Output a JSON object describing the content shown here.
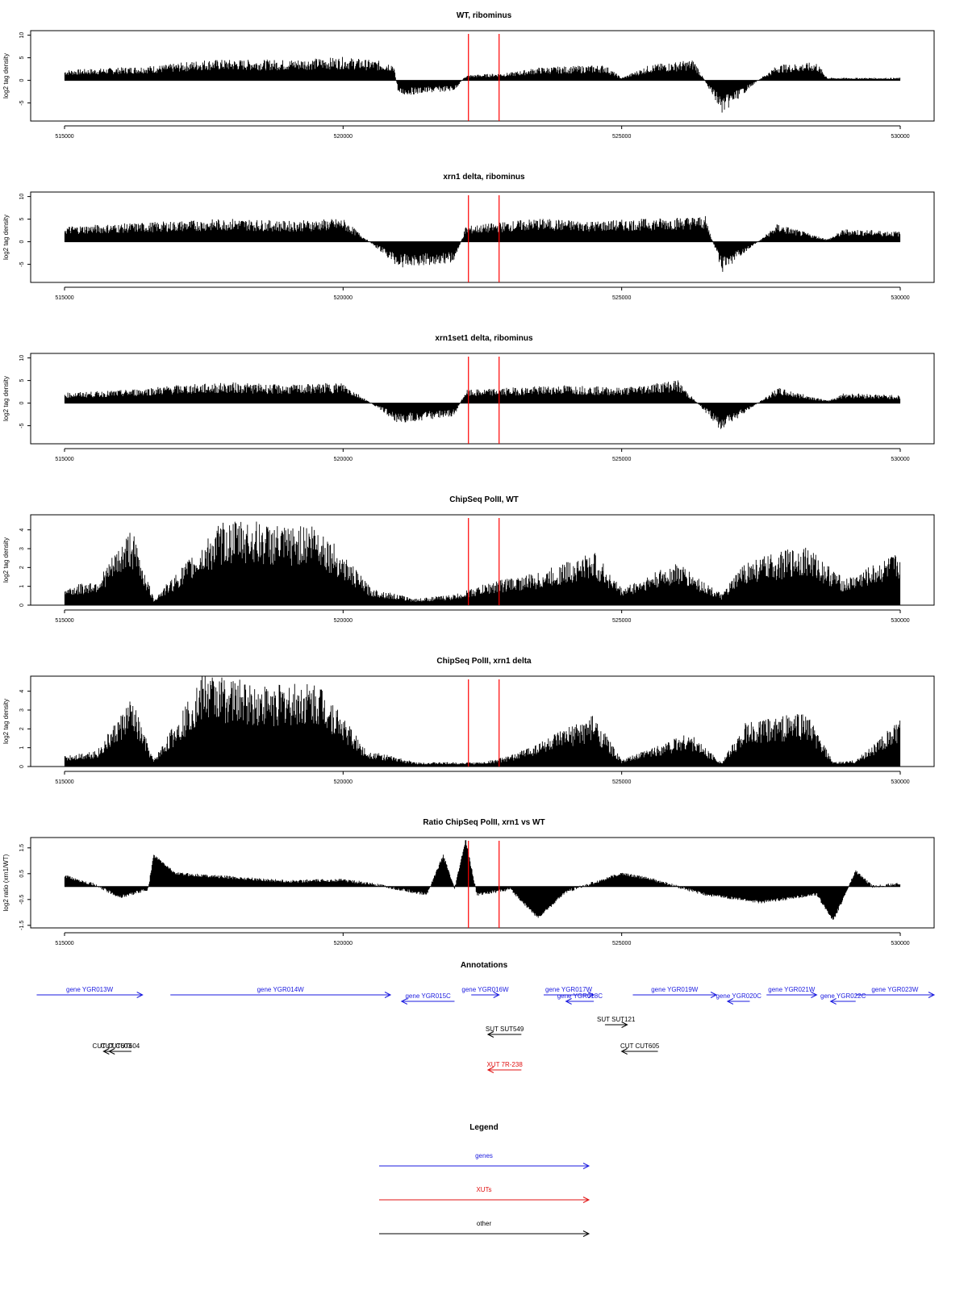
{
  "colors": {
    "gene": "#1a1adf",
    "xut": "#e01010",
    "other": "#000000",
    "marker": "#ff0000",
    "bars": "#000000"
  },
  "chart_data": [
    {
      "type": "bar",
      "title": "WT, ribominus",
      "ylabel": "log2 tag density",
      "xlim": [
        515000,
        530000
      ],
      "ylim": [
        -9,
        11
      ],
      "x_ticks": [
        515000,
        520000,
        525000,
        530000
      ],
      "y_ticks": [
        -5,
        0,
        5,
        10
      ],
      "red_markers": [
        522250,
        522800
      ],
      "signal_profile": [
        [
          515000,
          2
        ],
        [
          516000,
          2.5
        ],
        [
          516800,
          3
        ],
        [
          517500,
          4
        ],
        [
          519000,
          4
        ],
        [
          520000,
          4.5
        ],
        [
          520900,
          3.5
        ],
        [
          521000,
          -3
        ],
        [
          522000,
          -2
        ],
        [
          522200,
          1
        ],
        [
          523000,
          1.5
        ],
        [
          523500,
          2.5
        ],
        [
          524700,
          3
        ],
        [
          525000,
          0.5
        ],
        [
          525500,
          3
        ],
        [
          526300,
          4
        ],
        [
          526800,
          -6.5
        ],
        [
          527500,
          0.5
        ],
        [
          527800,
          3
        ],
        [
          528500,
          3.5
        ],
        [
          528700,
          0.5
        ],
        [
          530000,
          0.5
        ]
      ]
    },
    {
      "type": "bar",
      "title": "xrn1 delta, ribominus",
      "ylabel": "log2 tag density",
      "xlim": [
        515000,
        530000
      ],
      "ylim": [
        -9,
        11
      ],
      "x_ticks": [
        515000,
        520000,
        525000,
        530000
      ],
      "y_ticks": [
        -5,
        0,
        5,
        10
      ],
      "red_markers": [
        522250,
        522800
      ],
      "signal_profile": [
        [
          515000,
          3
        ],
        [
          516000,
          3.5
        ],
        [
          517000,
          4
        ],
        [
          518000,
          4.5
        ],
        [
          519000,
          4
        ],
        [
          520000,
          4.5
        ],
        [
          521000,
          -5
        ],
        [
          522000,
          -4
        ],
        [
          522200,
          3
        ],
        [
          523000,
          4
        ],
        [
          523500,
          4.5
        ],
        [
          524500,
          4
        ],
        [
          525500,
          4.5
        ],
        [
          526500,
          5
        ],
        [
          526800,
          -6
        ],
        [
          527500,
          0.5
        ],
        [
          527800,
          3.5
        ],
        [
          528700,
          0.5
        ],
        [
          529000,
          2.5
        ],
        [
          530000,
          2
        ]
      ]
    },
    {
      "type": "bar",
      "title": "xrn1set1 delta, ribominus",
      "ylabel": "log2 tag density",
      "xlim": [
        515000,
        530000
      ],
      "ylim": [
        -9,
        11
      ],
      "x_ticks": [
        515000,
        520000,
        525000,
        530000
      ],
      "y_ticks": [
        -5,
        0,
        5,
        10
      ],
      "red_markers": [
        522250,
        522800
      ],
      "signal_profile": [
        [
          515000,
          2
        ],
        [
          516000,
          2.5
        ],
        [
          517000,
          3.5
        ],
        [
          518000,
          4
        ],
        [
          519000,
          3.5
        ],
        [
          520000,
          4
        ],
        [
          521000,
          -4
        ],
        [
          522000,
          -2.5
        ],
        [
          522200,
          2.5
        ],
        [
          523000,
          3
        ],
        [
          524000,
          3.5
        ],
        [
          525000,
          3
        ],
        [
          526000,
          4.5
        ],
        [
          526800,
          -5.5
        ],
        [
          527500,
          0.5
        ],
        [
          527800,
          3
        ],
        [
          528700,
          0.5
        ],
        [
          529000,
          2
        ],
        [
          530000,
          1.5
        ]
      ]
    },
    {
      "type": "bar",
      "title": "ChipSeq PolII, WT",
      "ylabel": "log2 tag density",
      "xlim": [
        515000,
        530000
      ],
      "ylim": [
        0,
        4.8
      ],
      "x_ticks": [
        515000,
        520000,
        525000,
        530000
      ],
      "y_ticks": [
        0,
        1,
        2,
        3,
        4
      ],
      "red_markers": [
        522250,
        522800
      ],
      "signal_profile": [
        [
          515000,
          0.8
        ],
        [
          515600,
          1.2
        ],
        [
          516200,
          3.6
        ],
        [
          516600,
          0.3
        ],
        [
          517800,
          3.8
        ],
        [
          518200,
          4
        ],
        [
          519000,
          3.6
        ],
        [
          519500,
          3.9
        ],
        [
          520500,
          0.8
        ],
        [
          521300,
          0.3
        ],
        [
          522000,
          0.5
        ],
        [
          522800,
          1.2
        ],
        [
          523500,
          1.5
        ],
        [
          524500,
          2.5
        ],
        [
          525000,
          0.8
        ],
        [
          526000,
          2
        ],
        [
          526800,
          0.5
        ],
        [
          527200,
          2
        ],
        [
          528300,
          2.8
        ],
        [
          529000,
          1.2
        ],
        [
          530000,
          2.5
        ]
      ]
    },
    {
      "type": "bar",
      "title": "ChipSeq PolII, xrn1 delta",
      "ylabel": "log2 tag density",
      "xlim": [
        515000,
        530000
      ],
      "ylim": [
        0,
        4.8
      ],
      "x_ticks": [
        515000,
        520000,
        525000,
        530000
      ],
      "y_ticks": [
        0,
        1,
        2,
        3,
        4
      ],
      "red_markers": [
        522250,
        522800
      ],
      "signal_profile": [
        [
          515000,
          0.5
        ],
        [
          515600,
          0.8
        ],
        [
          516200,
          3.2
        ],
        [
          516600,
          0.3
        ],
        [
          517500,
          4.4
        ],
        [
          518500,
          3.8
        ],
        [
          519600,
          3.9
        ],
        [
          520400,
          0.8
        ],
        [
          521300,
          0.2
        ],
        [
          522500,
          0.2
        ],
        [
          523000,
          0.5
        ],
        [
          524500,
          2.4
        ],
        [
          525000,
          0.3
        ],
        [
          526200,
          1.6
        ],
        [
          526800,
          0.2
        ],
        [
          527200,
          2
        ],
        [
          528300,
          2.6
        ],
        [
          528800,
          0.2
        ],
        [
          529200,
          0.3
        ],
        [
          530000,
          2.2
        ]
      ]
    },
    {
      "type": "area",
      "title": "Ratio ChipSeq PolII, xrn1 vs WT",
      "ylabel": "log2 ratio (xrn1/WT)",
      "xlim": [
        515000,
        530000
      ],
      "ylim": [
        -1.6,
        1.9
      ],
      "x_ticks": [
        515000,
        520000,
        525000,
        530000
      ],
      "y_ticks": [
        -1.5,
        -0.5,
        0.5,
        1.5
      ],
      "red_markers": [
        522250,
        522800
      ],
      "signal_profile": [
        [
          515000,
          0.4
        ],
        [
          515500,
          0.1
        ],
        [
          516000,
          -0.4
        ],
        [
          516500,
          -0.1
        ],
        [
          516600,
          1.2
        ],
        [
          517000,
          0.5
        ],
        [
          518000,
          0.35
        ],
        [
          519000,
          0.2
        ],
        [
          520000,
          0.25
        ],
        [
          520500,
          0.1
        ],
        [
          521500,
          -0.3
        ],
        [
          521800,
          1.2
        ],
        [
          522000,
          -0.1
        ],
        [
          522200,
          1.8
        ],
        [
          522400,
          -0.3
        ],
        [
          523000,
          -0.1
        ],
        [
          523500,
          -1.2
        ],
        [
          524000,
          -0.2
        ],
        [
          525000,
          0.5
        ],
        [
          525500,
          0.3
        ],
        [
          526500,
          -0.3
        ],
        [
          527500,
          -0.6
        ],
        [
          528500,
          -0.3
        ],
        [
          528800,
          -1.3
        ],
        [
          529200,
          0.6
        ],
        [
          529500,
          0
        ],
        [
          530000,
          0.1
        ]
      ]
    }
  ],
  "annotations": {
    "title": "Annotations",
    "xlim": [
      515000,
      530000
    ],
    "items": [
      {
        "label": "gene YGR013W",
        "class": "gene",
        "dir": "+",
        "start": 514500,
        "end": 516400,
        "row": 0
      },
      {
        "label": "gene YGR014W",
        "class": "gene",
        "dir": "+",
        "start": 516900,
        "end": 520850,
        "row": 0
      },
      {
        "label": "gene YGR015C",
        "class": "gene",
        "dir": "-",
        "start": 521050,
        "end": 522000,
        "row": 1
      },
      {
        "label": "gene YGR016W",
        "class": "gene",
        "dir": "+",
        "start": 522300,
        "end": 522800,
        "row": 0
      },
      {
        "label": "gene YGR017W",
        "class": "gene",
        "dir": "+",
        "start": 523600,
        "end": 524500,
        "row": 0
      },
      {
        "label": "gene YGR018C",
        "class": "gene",
        "dir": "-",
        "start": 524000,
        "end": 524500,
        "row": 1
      },
      {
        "label": "gene YGR019W",
        "class": "gene",
        "dir": "+",
        "start": 525200,
        "end": 526700,
        "row": 0
      },
      {
        "label": "gene YGR020C",
        "class": "gene",
        "dir": "-",
        "start": 526900,
        "end": 527300,
        "row": 1
      },
      {
        "label": "gene YGR021W",
        "class": "gene",
        "dir": "+",
        "start": 527600,
        "end": 528500,
        "row": 0
      },
      {
        "label": "gene YGR022C",
        "class": "gene",
        "dir": "-",
        "start": 528750,
        "end": 529200,
        "row": 1
      },
      {
        "label": "gene YGR023W",
        "class": "gene",
        "dir": "+",
        "start": 529200,
        "end": 530700,
        "row": 0
      },
      {
        "label": "SUT SUT549",
        "class": "other",
        "dir": "-",
        "start": 522600,
        "end": 523200,
        "row": 3
      },
      {
        "label": "SUT SUT121",
        "class": "other",
        "dir": "+",
        "start": 524700,
        "end": 525100,
        "row": 2
      },
      {
        "label": "CUT CUT603",
        "class": "other",
        "dir": "-",
        "start": 515700,
        "end": 516000,
        "row": 4
      },
      {
        "label": "CUT CUT604",
        "class": "other",
        "dir": "-",
        "start": 515800,
        "end": 516200,
        "row": 4
      },
      {
        "label": "CUT CUT605",
        "class": "other",
        "dir": "-",
        "start": 525000,
        "end": 525650,
        "row": 4
      },
      {
        "label": "XUT 7R-238",
        "class": "xut",
        "dir": "-",
        "start": 522600,
        "end": 523200,
        "row": 5
      }
    ]
  },
  "legend": {
    "title": "Legend",
    "items": [
      {
        "label": "genes",
        "class": "gene"
      },
      {
        "label": "XUTs",
        "class": "xut"
      },
      {
        "label": "other",
        "class": "other"
      }
    ]
  }
}
